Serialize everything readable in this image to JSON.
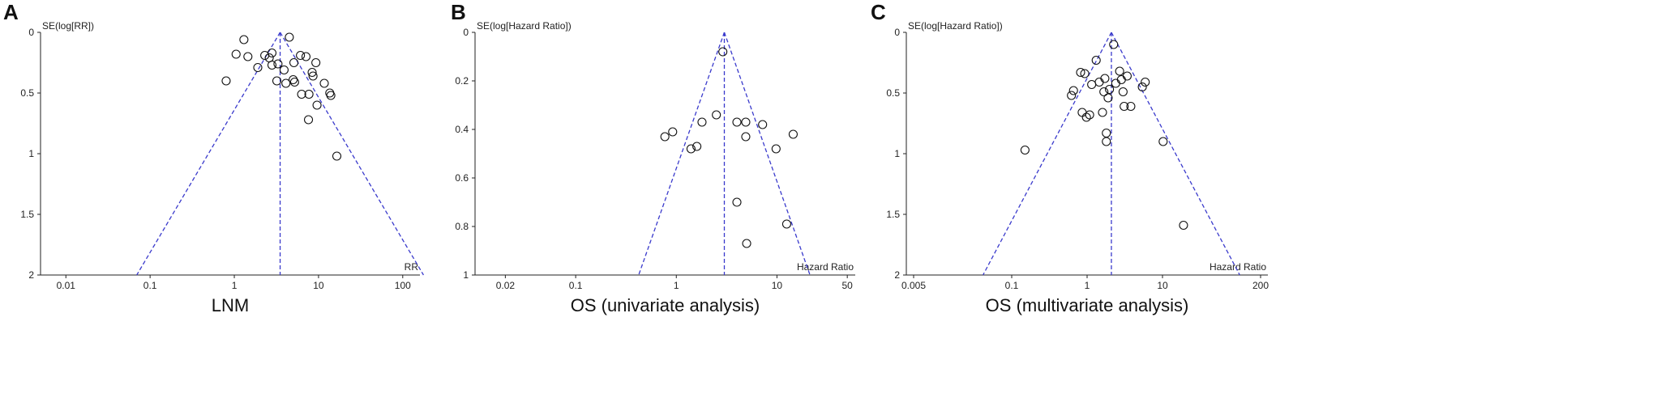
{
  "chart_data": [
    {
      "panel": "A",
      "type": "scatter",
      "subtype": "funnel",
      "title": "",
      "xlabel": "LNM",
      "ylabel": "SE(log[RR])",
      "x_axis_label": "RR",
      "x_scale": "log",
      "y_inverted": true,
      "xlim": [
        0.005,
        160
      ],
      "ylim": [
        0,
        2
      ],
      "xticks": [
        0.01,
        0.1,
        1,
        10,
        100
      ],
      "xtick_labels": [
        "0.01",
        "0.1",
        "1",
        "10",
        "100"
      ],
      "yticks": [
        0,
        0.5,
        1,
        1.5,
        2
      ],
      "ytick_labels": [
        "0",
        "0.5",
        "1",
        "1.5",
        "2"
      ],
      "pooled_estimate": 3.5,
      "funnel_color": "#3a3acc",
      "points": [
        {
          "x": 0.8,
          "y": 0.4
        },
        {
          "x": 1.05,
          "y": 0.18
        },
        {
          "x": 1.3,
          "y": 0.06
        },
        {
          "x": 1.45,
          "y": 0.2
        },
        {
          "x": 1.9,
          "y": 0.29
        },
        {
          "x": 2.3,
          "y": 0.19
        },
        {
          "x": 2.6,
          "y": 0.21
        },
        {
          "x": 2.8,
          "y": 0.17
        },
        {
          "x": 2.8,
          "y": 0.27
        },
        {
          "x": 3.2,
          "y": 0.4
        },
        {
          "x": 3.3,
          "y": 0.26
        },
        {
          "x": 3.9,
          "y": 0.31
        },
        {
          "x": 4.1,
          "y": 0.42
        },
        {
          "x": 4.5,
          "y": 0.04
        },
        {
          "x": 5.0,
          "y": 0.39
        },
        {
          "x": 5.1,
          "y": 0.25
        },
        {
          "x": 5.2,
          "y": 0.41
        },
        {
          "x": 6.1,
          "y": 0.19
        },
        {
          "x": 6.3,
          "y": 0.51
        },
        {
          "x": 7.1,
          "y": 0.2
        },
        {
          "x": 7.6,
          "y": 0.72
        },
        {
          "x": 7.7,
          "y": 0.51
        },
        {
          "x": 8.4,
          "y": 0.33
        },
        {
          "x": 8.6,
          "y": 0.36
        },
        {
          "x": 9.3,
          "y": 0.25
        },
        {
          "x": 9.6,
          "y": 0.6
        },
        {
          "x": 11.7,
          "y": 0.42
        },
        {
          "x": 13.6,
          "y": 0.5
        },
        {
          "x": 14.0,
          "y": 0.52
        },
        {
          "x": 16.5,
          "y": 1.02
        }
      ]
    },
    {
      "panel": "B",
      "type": "scatter",
      "subtype": "funnel",
      "title": "",
      "xlabel": "OS (univariate analysis)",
      "ylabel": "SE(log[Hazard Ratio])",
      "x_axis_label": "Hazard Ratio",
      "x_scale": "log",
      "y_inverted": true,
      "xlim": [
        0.01,
        60
      ],
      "ylim": [
        0,
        1
      ],
      "xticks": [
        0.02,
        0.1,
        1,
        10,
        50
      ],
      "xtick_labels": [
        "0.02",
        "0.1",
        "1",
        "10",
        "50"
      ],
      "yticks": [
        0,
        0.2,
        0.4,
        0.6,
        0.8,
        1
      ],
      "ytick_labels": [
        "0",
        "0.2",
        "0.4",
        "0.6",
        "0.8",
        "1"
      ],
      "pooled_estimate": 3.0,
      "funnel_color": "#3a3acc",
      "points": [
        {
          "x": 0.77,
          "y": 0.43
        },
        {
          "x": 0.92,
          "y": 0.41
        },
        {
          "x": 1.4,
          "y": 0.48
        },
        {
          "x": 1.6,
          "y": 0.47
        },
        {
          "x": 1.8,
          "y": 0.37
        },
        {
          "x": 2.5,
          "y": 0.34
        },
        {
          "x": 2.9,
          "y": 0.08
        },
        {
          "x": 4.0,
          "y": 0.37
        },
        {
          "x": 4.9,
          "y": 0.37
        },
        {
          "x": 4.9,
          "y": 0.43
        },
        {
          "x": 4.0,
          "y": 0.7
        },
        {
          "x": 5.0,
          "y": 0.87
        },
        {
          "x": 7.2,
          "y": 0.38
        },
        {
          "x": 9.8,
          "y": 0.48
        },
        {
          "x": 12.5,
          "y": 0.79
        },
        {
          "x": 14.5,
          "y": 0.42
        }
      ]
    },
    {
      "panel": "C",
      "type": "scatter",
      "subtype": "funnel",
      "title": "",
      "xlabel": "OS (multivariate analysis)",
      "ylabel": "SE(log[Hazard Ratio])",
      "x_axis_label": "Hazard Ratio",
      "x_scale": "log",
      "y_inverted": true,
      "xlim": [
        0.004,
        250
      ],
      "ylim": [
        0,
        2
      ],
      "xticks": [
        0.005,
        0.1,
        1,
        10,
        200
      ],
      "xtick_labels": [
        "0.005",
        "0.1",
        "1",
        "10",
        "200"
      ],
      "yticks": [
        0,
        0.5,
        1,
        1.5,
        2
      ],
      "ytick_labels": [
        "0",
        "0.5",
        "1",
        "1.5",
        "2"
      ],
      "pooled_estimate": 2.1,
      "funnel_color": "#3a3acc",
      "points": [
        {
          "x": 0.15,
          "y": 0.97
        },
        {
          "x": 0.62,
          "y": 0.52
        },
        {
          "x": 0.66,
          "y": 0.48
        },
        {
          "x": 0.82,
          "y": 0.33
        },
        {
          "x": 0.86,
          "y": 0.66
        },
        {
          "x": 0.93,
          "y": 0.34
        },
        {
          "x": 0.98,
          "y": 0.7
        },
        {
          "x": 1.08,
          "y": 0.68
        },
        {
          "x": 1.15,
          "y": 0.43
        },
        {
          "x": 1.32,
          "y": 0.23
        },
        {
          "x": 1.45,
          "y": 0.41
        },
        {
          "x": 1.6,
          "y": 0.66
        },
        {
          "x": 1.67,
          "y": 0.49
        },
        {
          "x": 1.72,
          "y": 0.38
        },
        {
          "x": 1.8,
          "y": 0.83
        },
        {
          "x": 1.8,
          "y": 0.9
        },
        {
          "x": 1.9,
          "y": 0.54
        },
        {
          "x": 1.98,
          "y": 0.47
        },
        {
          "x": 2.25,
          "y": 0.1
        },
        {
          "x": 2.4,
          "y": 0.42
        },
        {
          "x": 2.7,
          "y": 0.32
        },
        {
          "x": 2.85,
          "y": 0.39
        },
        {
          "x": 3.0,
          "y": 0.49
        },
        {
          "x": 3.1,
          "y": 0.61
        },
        {
          "x": 3.4,
          "y": 0.36
        },
        {
          "x": 3.8,
          "y": 0.61
        },
        {
          "x": 5.4,
          "y": 0.45
        },
        {
          "x": 5.9,
          "y": 0.41
        },
        {
          "x": 10.2,
          "y": 0.9
        },
        {
          "x": 19.0,
          "y": 1.59
        }
      ]
    }
  ]
}
